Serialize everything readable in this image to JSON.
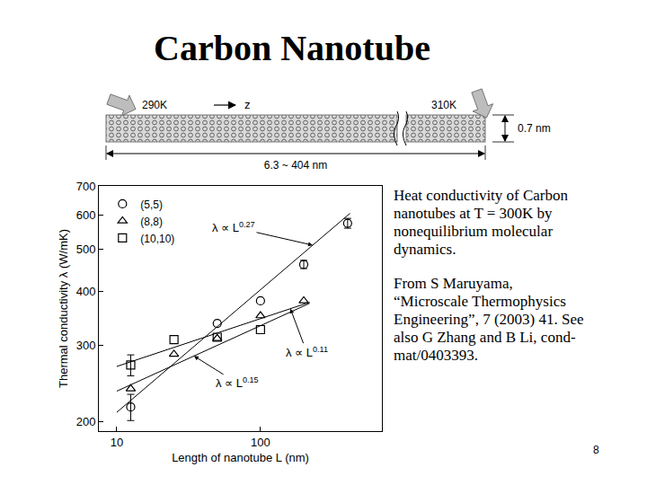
{
  "title": "Carbon Nanotube",
  "diagram": {
    "left_temperature": "290K",
    "right_temperature": "310K",
    "axis": "z",
    "diameter": "0.7 nm",
    "length": "6.3 ~ 404 nm"
  },
  "notes": [
    "Heat conductivity of Carbon nanotubes at T = 300K by nonequilibrium molecular dynamics.",
    "From S Maruyama, “Microscale Thermophysics Engineering”, 7 (2003) 41. See also G Zhang and B Li, cond-mat/0403393."
  ],
  "page_number": "8",
  "chart_data": {
    "type": "scatter",
    "x_label": "Length of nanotube L (nm)",
    "y_label": "Thermal conductivity λ (W/mK)",
    "log": true,
    "grid": false,
    "legend": "top left",
    "xlim": [
      7.5,
      700
    ],
    "xticks": [
      10,
      100
    ],
    "ylim": [
      190,
      700
    ],
    "yticks": [
      200,
      300,
      400,
      500,
      600,
      700
    ],
    "series": [
      {
        "name": "(5,5)",
        "color": "#000000",
        "marker": "circle",
        "x": [
          12.5,
          50,
          100,
          200,
          404
        ],
        "values": [
          216,
          337,
          380,
          461,
          574
        ],
        "error": [
          15,
          null,
          null,
          10,
          15
        ]
      },
      {
        "name": "(8,8)",
        "color": "#000000",
        "marker": "triangle-up",
        "x": [
          12.5,
          25,
          50,
          100,
          200
        ],
        "values": [
          238,
          286,
          311,
          351,
          380
        ],
        "error": [
          null,
          null,
          null,
          null,
          null
        ]
      },
      {
        "name": "(10,10)",
        "color": "#000000",
        "marker": "square",
        "x": [
          12.5,
          25,
          50,
          100
        ],
        "values": [
          270,
          309,
          313,
          326
        ],
        "error": [
          15,
          null,
          null,
          null
        ]
      }
    ],
    "fits": [
      {
        "label": "λ ∝ L",
        "exponent": 0.27,
        "color": "#000000",
        "x": [
          10,
          420
        ],
        "values": [
          210,
          605
        ]
      },
      {
        "label": "λ ∝ L",
        "exponent": 0.11,
        "color": "#000000",
        "x": [
          10,
          220
        ],
        "values": [
          268,
          377
        ]
      },
      {
        "label": "λ ∝ L",
        "exponent": 0.15,
        "color": "#000000",
        "x": [
          10,
          220
        ],
        "values": [
          235,
          375
        ]
      }
    ]
  }
}
